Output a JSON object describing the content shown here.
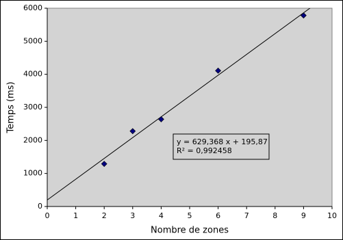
{
  "chart_data": {
    "type": "scatter",
    "xlabel": "Nombre de zones",
    "ylabel": "Temps (ms)",
    "series": [
      {
        "x": [
          2,
          3,
          4,
          6,
          9
        ],
        "values": [
          1290,
          2280,
          2640,
          4110,
          5780
        ],
        "color": "#000080"
      }
    ],
    "trendline": {
      "slope": 629.368,
      "intercept": 195.87,
      "color": "#000000",
      "equation": "y = 629,368 x + 195,87",
      "r2": "R² = 0,992458"
    },
    "xlim": [
      0,
      10
    ],
    "xticks": [
      0,
      1,
      2,
      3,
      4,
      5,
      6,
      7,
      8,
      9,
      10
    ],
    "ylim": [
      0,
      6000
    ],
    "yticks": [
      0,
      1000,
      2000,
      3000,
      4000,
      5000,
      6000
    ],
    "plot_background": "#d3d3d3"
  }
}
